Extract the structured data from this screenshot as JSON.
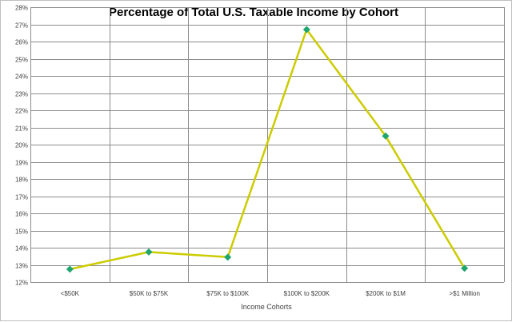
{
  "chart_data": {
    "type": "line",
    "title": "Percentage of Total U.S. Taxable Income by Cohort",
    "xlabel": "Income Cohorts",
    "ylabel": "",
    "categories": [
      "<$50K",
      "$50K to $75K",
      "$75K to $100K",
      "$100K to $200K",
      "$200K to $1M",
      ">$1 Million"
    ],
    "series": [
      {
        "values": [
          12.75,
          13.75,
          13.45,
          26.7,
          20.5,
          12.8
        ]
      }
    ],
    "ylim": [
      12,
      28
    ],
    "yticks": [
      "12%",
      "13%",
      "14%",
      "15%",
      "16%",
      "17%",
      "18%",
      "19%",
      "20%",
      "21%",
      "22%",
      "23%",
      "24%",
      "25%",
      "26%",
      "27%",
      "28%"
    ],
    "grid": true,
    "colors": {
      "line": "#cccc00",
      "marker": "#1fa56e",
      "grid": "#8c8c8c"
    }
  }
}
